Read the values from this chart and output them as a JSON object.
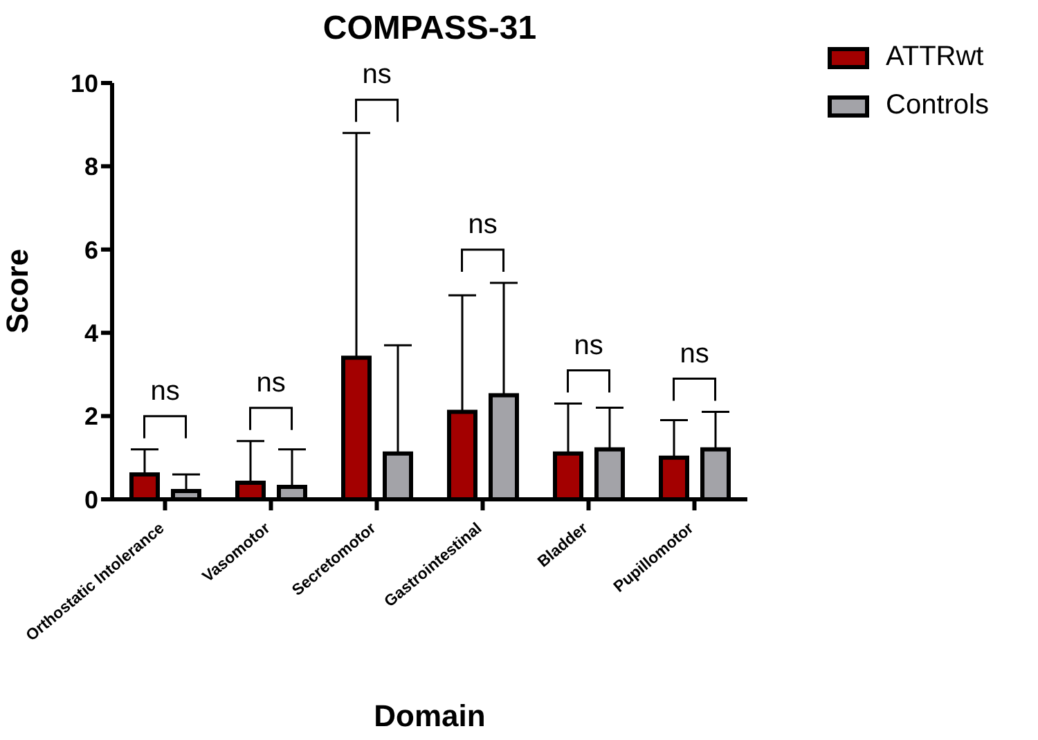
{
  "chart_data": {
    "type": "bar",
    "title": "COMPASS-31",
    "xlabel": "Domain",
    "ylabel": "Score",
    "categories": [
      "Orthostatic Intolerance",
      "Vasomotor",
      "Secretomotor",
      "Gastrointestinal",
      "Bladder",
      "Pupillomotor"
    ],
    "series": [
      {
        "name": "ATTRwt",
        "color": "#a30000",
        "values": [
          0.6,
          0.4,
          3.4,
          2.1,
          1.1,
          1.0
        ],
        "errors": [
          [
            0.6,
            1.2
          ],
          [
            0.4,
            1.4
          ],
          [
            3.4,
            8.8
          ],
          [
            2.1,
            4.9
          ],
          [
            1.1,
            2.3
          ],
          [
            1.0,
            1.9
          ]
        ]
      },
      {
        "name": "Controls",
        "color": "#a3a3a8",
        "values": [
          0.2,
          0.3,
          1.1,
          2.5,
          1.2,
          1.2
        ],
        "errors": [
          [
            0.2,
            0.6
          ],
          [
            0.3,
            1.2
          ],
          [
            1.1,
            3.7
          ],
          [
            2.5,
            5.2
          ],
          [
            1.2,
            2.2
          ],
          [
            1.2,
            2.1
          ]
        ]
      }
    ],
    "annotations": [
      "ns",
      "ns",
      "ns",
      "ns",
      "ns",
      "ns"
    ],
    "ylim": [
      0,
      10
    ],
    "yticks": [
      0,
      2,
      4,
      6,
      8,
      10
    ],
    "grid": false,
    "legend": "top right"
  }
}
